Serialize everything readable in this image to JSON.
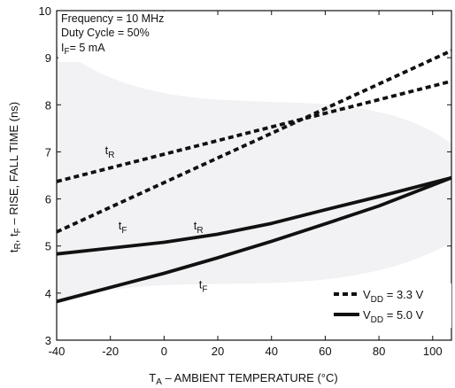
{
  "chart_data": {
    "type": "line",
    "xlabel": {
      "main": "T",
      "sub": "A",
      "rest": " – AMBIENT TEMPERATURE (°C)"
    },
    "ylabel": {
      "t1": "t",
      "s1": "R",
      "mid": ", t",
      "s2": "F",
      "rest": " – RISE, FALL TIME (ns)"
    },
    "xlim": [
      -40,
      107
    ],
    "ylim": [
      3,
      10
    ],
    "x_ticks": [
      "-40",
      "-20",
      "0",
      "20",
      "40",
      "60",
      "80",
      "100"
    ],
    "y_ticks": [
      "3",
      "4",
      "5",
      "6",
      "7",
      "8",
      "9",
      "10"
    ],
    "x_tick_values": [
      -40,
      -20,
      0,
      20,
      40,
      60,
      80,
      100
    ],
    "y_tick_values": [
      3,
      4,
      5,
      6,
      7,
      8,
      9,
      10
    ],
    "conditions": [
      "Frequency = 10 MHz",
      "Duty Cycle = 50%"
    ],
    "condition_if": {
      "main": "I",
      "sub": "F",
      "rest": "= 5 mA"
    },
    "legend": [
      {
        "style": "dashed",
        "main": "V",
        "sub": "DD",
        "rest": " = 3.3 V"
      },
      {
        "style": "solid",
        "main": "V",
        "sub": "DD",
        "rest": " = 5.0 V"
      }
    ],
    "series": [
      {
        "group": "VDD=3.3V",
        "param": "tR",
        "style": "dashed",
        "x": [
          -40,
          107
        ],
        "y": [
          6.37,
          8.5
        ]
      },
      {
        "group": "VDD=3.3V",
        "param": "tF",
        "style": "dashed",
        "x": [
          -40,
          107
        ],
        "y": [
          5.3,
          9.15
        ]
      },
      {
        "group": "VDD=5.0V",
        "param": "tR",
        "style": "solid",
        "x": [
          -40,
          0,
          20,
          40,
          60,
          80,
          107
        ],
        "y": [
          4.83,
          5.08,
          5.25,
          5.48,
          5.77,
          6.05,
          6.45
        ]
      },
      {
        "group": "VDD=5.0V",
        "param": "tF",
        "style": "solid",
        "x": [
          -40,
          0,
          20,
          40,
          60,
          80,
          107
        ],
        "y": [
          3.82,
          4.42,
          4.75,
          5.1,
          5.47,
          5.85,
          6.45
        ]
      }
    ],
    "curve_labels": [
      {
        "main": "t",
        "sub": "R",
        "x": -22,
        "y": 6.95
      },
      {
        "main": "t",
        "sub": "F",
        "x": -17,
        "y": 5.35
      },
      {
        "main": "t",
        "sub": "R",
        "x": 11,
        "y": 5.35
      },
      {
        "main": "t",
        "sub": "F",
        "x": 13,
        "y": 4.1
      }
    ],
    "grid": false,
    "legend_position": "bottom-right"
  }
}
